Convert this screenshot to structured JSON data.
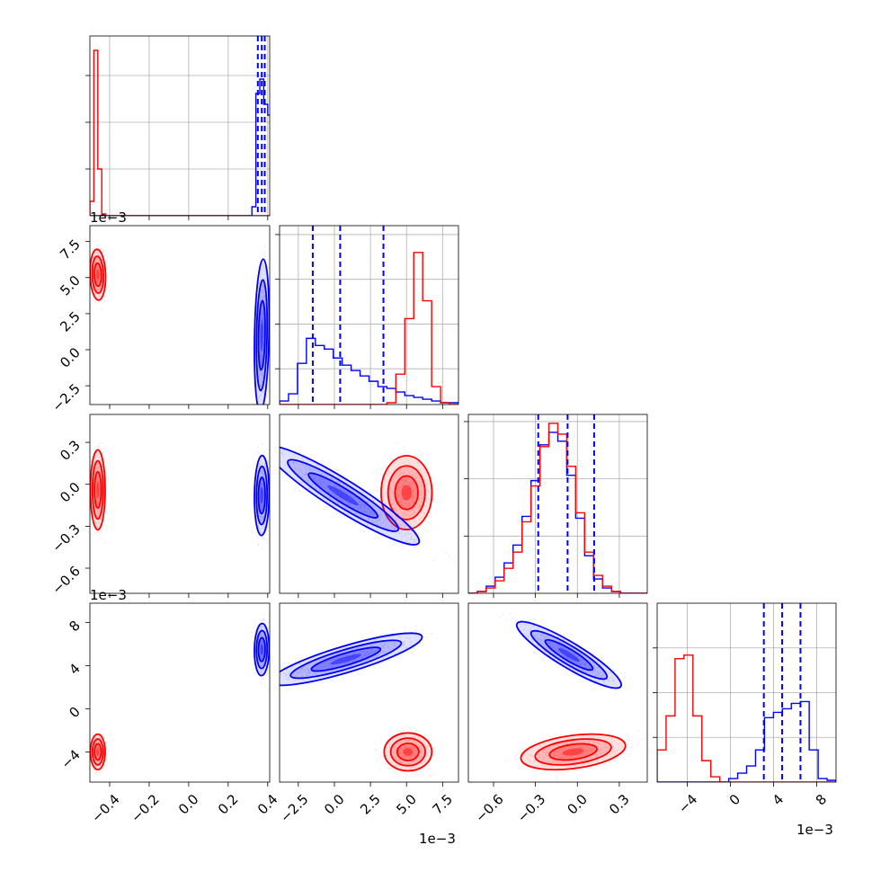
{
  "chart_data": {
    "type": "corner",
    "colors": {
      "red": "#ff0000",
      "blue": "#0000ff",
      "grid": "#b0b0b0"
    },
    "params": [
      {
        "lim": [
          -0.5,
          0.41
        ],
        "ticks": [
          -0.4,
          -0.2,
          0.0,
          0.2,
          0.4
        ],
        "tick_labels": [
          "−0.4",
          "−0.2",
          "0.0",
          "0.2",
          "0.4"
        ],
        "offset_text": ""
      },
      {
        "lim": [
          -3.8,
          8.6
        ],
        "ticks": [
          -2.5,
          0.0,
          2.5,
          5.0,
          7.5
        ],
        "tick_labels": [
          "−2.5",
          "0.0",
          "2.5",
          "5.0",
          "7.5"
        ],
        "offset_text": "1e−3"
      },
      {
        "lim": [
          -0.78,
          0.5
        ],
        "ticks": [
          -0.6,
          -0.3,
          0.0,
          0.3
        ],
        "tick_labels": [
          "−0.6",
          "−0.3",
          "0.0",
          "0.3"
        ],
        "offset_text": ""
      },
      {
        "lim": [
          -6.8,
          9.8
        ],
        "ticks": [
          -4,
          0,
          4,
          8
        ],
        "tick_labels": [
          "−4",
          "0",
          "4",
          "8"
        ],
        "offset_text": "1e−3"
      }
    ],
    "diag_y_fracs": [
      [
        0.26,
        0.52,
        0.78
      ],
      [
        0.2,
        0.45,
        0.7,
        0.95
      ],
      [
        0.32,
        0.64,
        0.96
      ],
      [
        0.25,
        0.5,
        0.75
      ]
    ],
    "quantiles_blue": [
      [
        0.35,
        0.37,
        0.385
      ],
      [
        -1.5,
        0.4,
        3.4
      ],
      [
        -0.28,
        -0.07,
        0.12
      ],
      [
        3.1,
        4.8,
        6.5
      ]
    ],
    "hist_bins": [
      {
        "edges_start": -0.5,
        "edges_step": 0.02,
        "red": [
          0.08,
          0.92,
          0.26,
          0.01,
          0,
          0,
          0,
          0,
          0,
          0,
          0,
          0,
          0,
          0,
          0,
          0,
          0,
          0,
          0,
          0,
          0,
          0,
          0,
          0,
          0,
          0,
          0,
          0,
          0,
          0,
          0,
          0,
          0,
          0,
          0,
          0,
          0,
          0,
          0,
          0,
          0,
          0,
          0,
          0,
          0,
          0
        ],
        "blue": [
          0,
          0,
          0,
          0,
          0,
          0,
          0,
          0,
          0,
          0,
          0,
          0,
          0,
          0,
          0,
          0,
          0,
          0,
          0,
          0,
          0,
          0,
          0,
          0,
          0,
          0,
          0,
          0,
          0,
          0,
          0,
          0,
          0,
          0,
          0,
          0,
          0,
          0,
          0,
          0,
          0,
          0.05,
          0.68,
          0.76,
          0.62,
          0.56
        ]
      },
      {
        "edges_start": -3.8,
        "edges_step": 0.62,
        "red": [
          0,
          0,
          0,
          0,
          0,
          0,
          0,
          0,
          0,
          0,
          0,
          0,
          0.01,
          0.17,
          0.48,
          0.85,
          0.58,
          0.1,
          0.01,
          0
        ],
        "blue": [
          0.02,
          0.06,
          0.23,
          0.37,
          0.33,
          0.31,
          0.26,
          0.22,
          0.19,
          0.16,
          0.13,
          0.1,
          0.09,
          0.07,
          0.05,
          0.04,
          0.03,
          0.02,
          0.01,
          0.01
        ]
      },
      {
        "edges_start": -0.78,
        "edges_step": 0.064,
        "red": [
          0,
          0.01,
          0.03,
          0.07,
          0.14,
          0.23,
          0.4,
          0.6,
          0.82,
          0.95,
          0.89,
          0.71,
          0.45,
          0.23,
          0.1,
          0.04,
          0.01,
          0,
          0,
          0
        ],
        "blue": [
          0,
          0.01,
          0.04,
          0.09,
          0.17,
          0.27,
          0.43,
          0.63,
          0.83,
          0.9,
          0.85,
          0.66,
          0.42,
          0.21,
          0.08,
          0.03,
          0.01,
          0,
          0,
          0
        ]
      },
      {
        "edges_start": -6.8,
        "edges_step": 0.83,
        "red": [
          0.18,
          0.37,
          0.69,
          0.71,
          0.37,
          0.12,
          0.03,
          0,
          0,
          0,
          0,
          0,
          0,
          0,
          0,
          0,
          0,
          0,
          0,
          0
        ],
        "blue": [
          0,
          0,
          0,
          0,
          0,
          0,
          0,
          0,
          0.02,
          0.05,
          0.09,
          0.18,
          0.36,
          0.39,
          0.41,
          0.44,
          0.45,
          0.18,
          0.02,
          0.01
        ]
      }
    ],
    "clusters": [
      {
        "row": 1,
        "col": 0,
        "red": {
          "mean": [
            -0.46,
            5.2
          ],
          "sd": [
            0.018,
            0.8
          ],
          "corr": -0.1
        },
        "blue": {
          "mean": [
            0.37,
            1.0
          ],
          "sd": [
            0.017,
            2.4
          ],
          "corr": 0.2
        }
      },
      {
        "row": 2,
        "col": 0,
        "red": {
          "mean": [
            -0.46,
            -0.04
          ],
          "sd": [
            0.017,
            0.13
          ],
          "corr": 0.0
        },
        "blue": {
          "mean": [
            0.37,
            -0.08
          ],
          "sd": [
            0.017,
            0.13
          ],
          "corr": 0.05
        }
      },
      {
        "row": 3,
        "col": 0,
        "red": {
          "mean": [
            -0.46,
            -4.0
          ],
          "sd": [
            0.017,
            0.75
          ],
          "corr": 0.0
        },
        "blue": {
          "mean": [
            0.37,
            5.5
          ],
          "sd": [
            0.017,
            1.1
          ],
          "corr": 0.05
        }
      },
      {
        "row": 2,
        "col": 1,
        "red": {
          "mean": [
            5.0,
            -0.06
          ],
          "sd": [
            0.8,
            0.12
          ],
          "corr": 0.0
        },
        "blue": {
          "mean": [
            0.6,
            -0.08
          ],
          "sd": [
            2.4,
            0.16
          ],
          "corr": -0.93
        }
      },
      {
        "row": 3,
        "col": 1,
        "red": {
          "mean": [
            5.1,
            -4.0
          ],
          "sd": [
            0.75,
            0.8
          ],
          "corr": 0.0
        },
        "blue": {
          "mean": [
            0.8,
            4.6
          ],
          "sd": [
            2.4,
            1.1
          ],
          "corr": 0.85
        }
      },
      {
        "row": 3,
        "col": 2,
        "red": {
          "mean": [
            -0.03,
            -4.0
          ],
          "sd": [
            0.17,
            0.75
          ],
          "corr": 0.35
        },
        "blue": {
          "mean": [
            -0.06,
            5.0
          ],
          "sd": [
            0.17,
            1.4
          ],
          "corr": -0.9
        }
      }
    ]
  }
}
